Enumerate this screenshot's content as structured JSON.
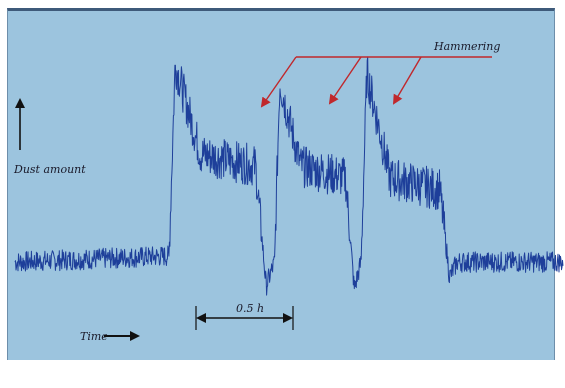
{
  "chart_data": {
    "type": "line",
    "title": "",
    "xlabel": "Time",
    "ylabel": "Dust amount",
    "scale_label": "0.5 h",
    "annotation": "Hammering",
    "series_color": "#1e3f9a",
    "arrow_color": "#c0282c",
    "background_color": "#9cc4de",
    "grid": false,
    "x_range_hours": [
      0,
      2.85
    ],
    "y_range": [
      0,
      1
    ],
    "baseline_level": 0.2,
    "segments": [
      {
        "x": [
          0.0,
          0.8
        ],
        "shape": "flat",
        "y": [
          0.2,
          0.22
        ]
      },
      {
        "x": [
          0.8,
          1.35
        ],
        "shape": "pulse",
        "rise_to": 0.86,
        "settle_to": 0.56,
        "drop_to": 0.12
      },
      {
        "x": [
          1.35,
          1.8
        ],
        "shape": "pulse",
        "rise_to": 0.8,
        "settle_to": 0.52,
        "drop_to": 0.11
      },
      {
        "x": [
          1.8,
          2.3
        ],
        "shape": "pulse",
        "rise_to": 0.83,
        "settle_to": 0.48,
        "drop_to": 0.15
      },
      {
        "x": [
          2.3,
          2.85
        ],
        "shape": "flat",
        "y": [
          0.2,
          0.2
        ]
      }
    ],
    "hammering_peaks_hours": [
      1.25,
      1.62,
      1.96
    ]
  }
}
